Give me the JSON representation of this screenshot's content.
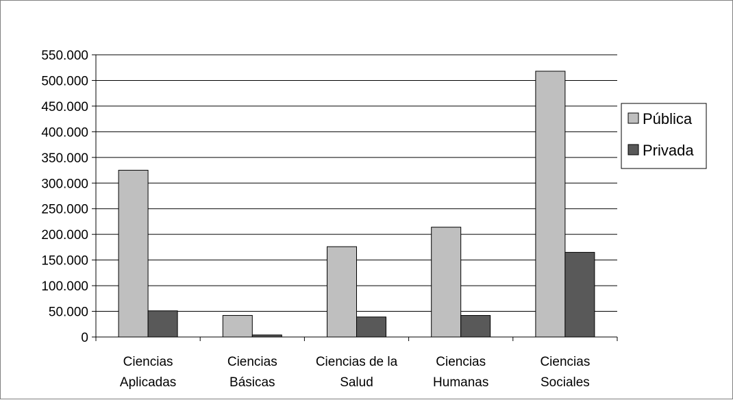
{
  "chart_data": {
    "type": "bar",
    "title": "",
    "xlabel": "",
    "ylabel": "",
    "ylim": [
      0,
      550000
    ],
    "yticks": [
      "0",
      "50.000",
      "100.000",
      "150.000",
      "200.000",
      "250.000",
      "300.000",
      "350.000",
      "400.000",
      "450.000",
      "500.000",
      "550.000"
    ],
    "categories": [
      [
        "Ciencias",
        "Aplicadas"
      ],
      [
        "Ciencias",
        "Básicas"
      ],
      [
        "Ciencias de la",
        "Salud"
      ],
      [
        "Ciencias",
        "Humanas"
      ],
      [
        "Ciencias",
        "Sociales"
      ]
    ],
    "series": [
      {
        "name": "Pública",
        "color": "#bfbfbf",
        "values": [
          325000,
          42000,
          176000,
          214000,
          518000
        ]
      },
      {
        "name": "Privada",
        "color": "#595959",
        "values": [
          51000,
          4000,
          39000,
          42000,
          165000
        ]
      }
    ],
    "grid": true,
    "legend": "right"
  }
}
